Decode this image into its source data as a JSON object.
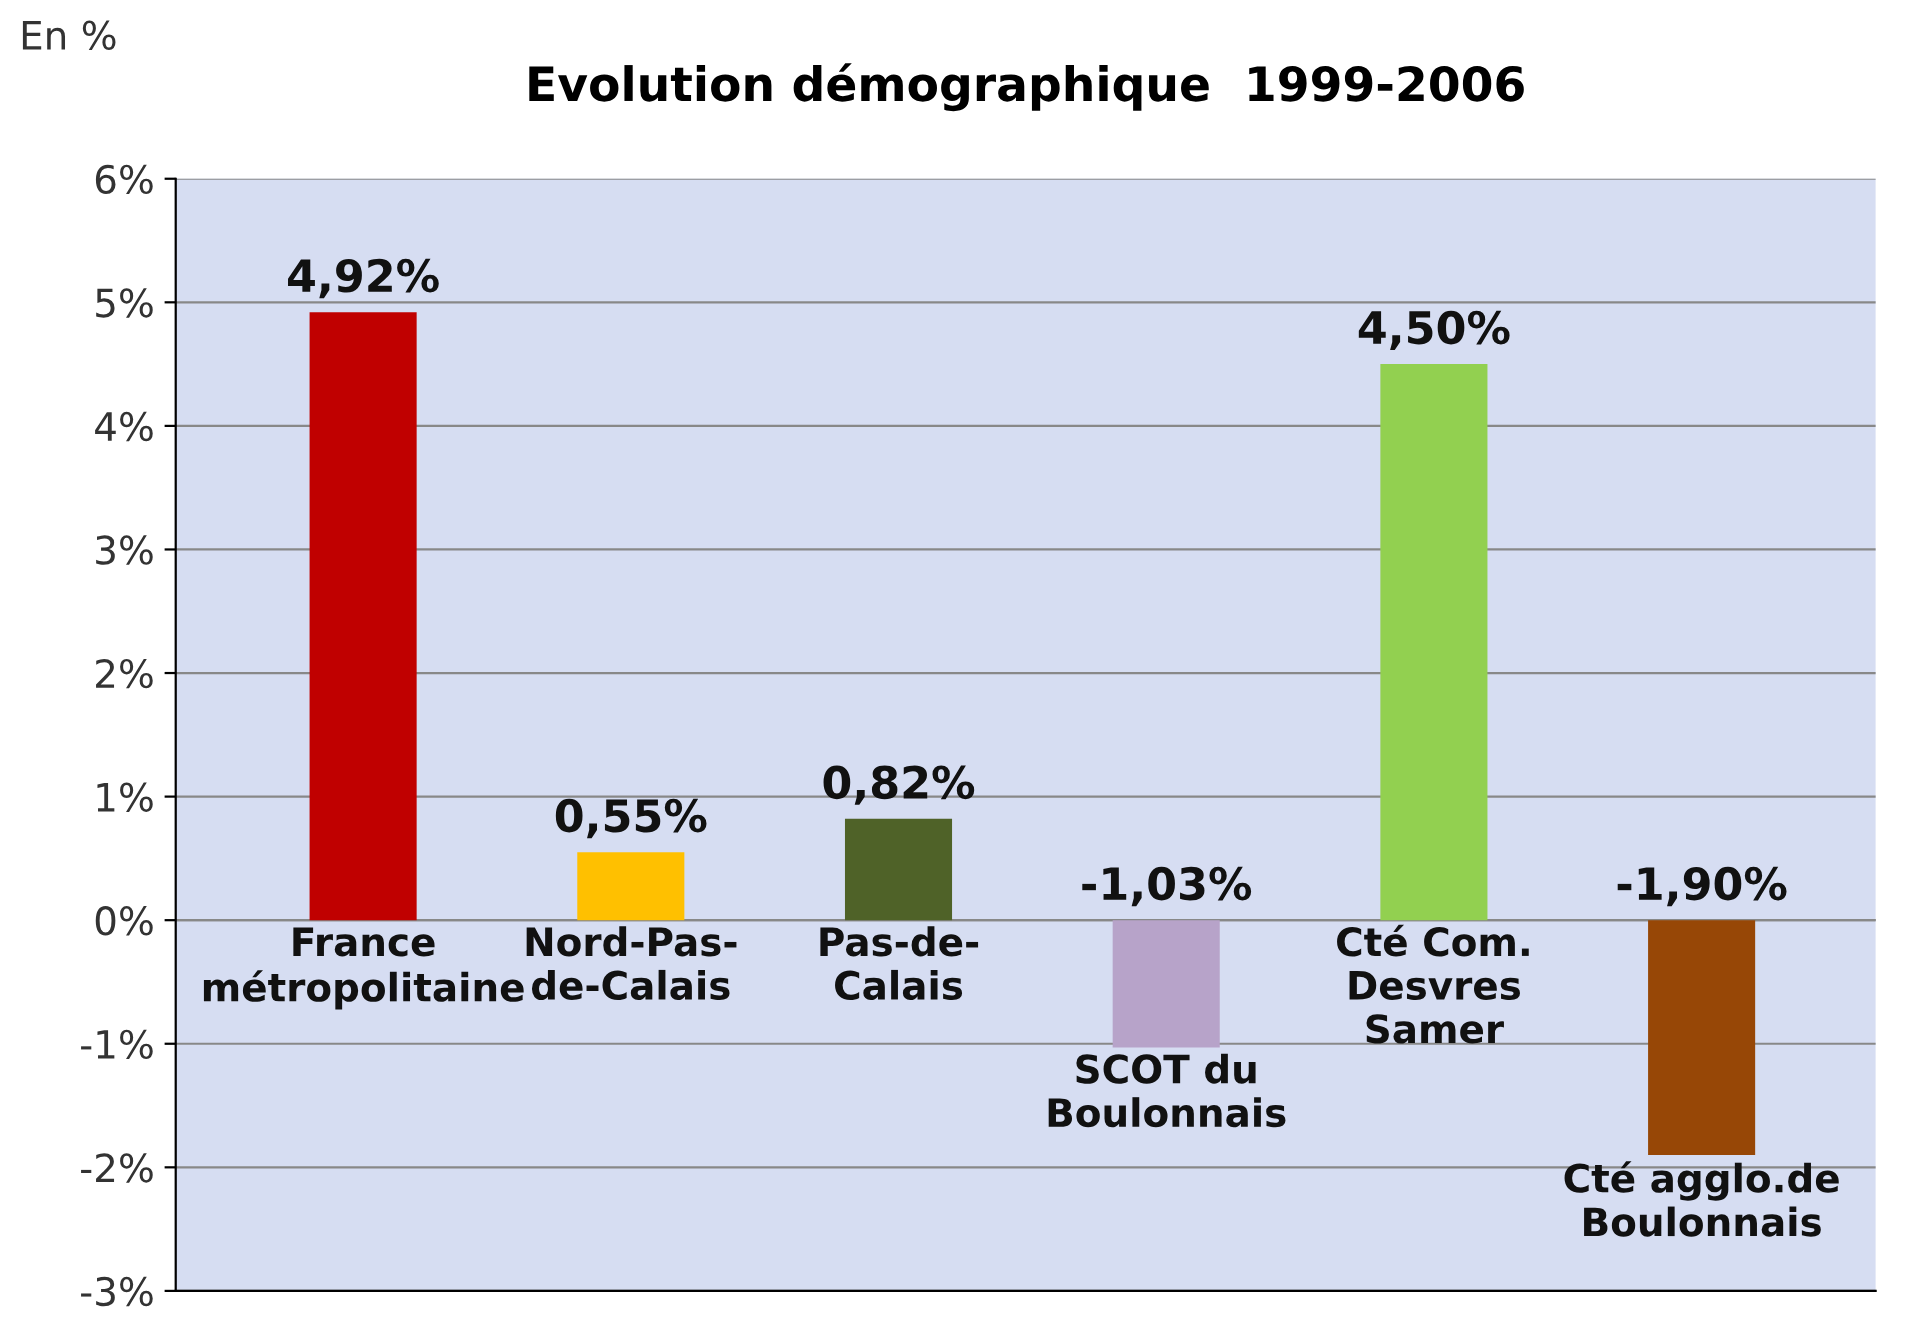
{
  "chart_data": {
    "type": "bar",
    "title": "Evolution démographique  1999-2006",
    "ylabel": "En %",
    "categories": [
      "France\nmétropolitaine",
      "Nord-Pas-\nde-Calais",
      "Pas-de-\nCalais",
      "SCOT du\nBoulonnais",
      "Cté Com.\nDesvres\nSamer",
      "Cté agglo.de\nBoulonnais"
    ],
    "values": [
      4.92,
      0.55,
      0.82,
      -1.03,
      4.5,
      -1.9
    ],
    "colors": [
      "#c00000",
      "#ffc000",
      "#4f6228",
      "#b7a3c9",
      "#92d050",
      "#974706"
    ],
    "value_labels": [
      "4,92%",
      "0,55%",
      "0,82%",
      "-1,03%",
      "4,50%",
      "-1,90%"
    ],
    "ylim": [
      -3,
      6
    ],
    "yticks": [
      {
        "value": -3,
        "label": "-3%"
      },
      {
        "value": -2,
        "label": "-2%"
      },
      {
        "value": -1,
        "label": "-1%"
      },
      {
        "value": 0,
        "label": "0%"
      },
      {
        "value": 1,
        "label": "1%"
      },
      {
        "value": 2,
        "label": "2%"
      },
      {
        "value": 3,
        "label": "3%"
      },
      {
        "value": 4,
        "label": "4%"
      },
      {
        "value": 5,
        "label": "5%"
      },
      {
        "value": 6,
        "label": "6%"
      }
    ],
    "grid": "y",
    "legend": false
  }
}
